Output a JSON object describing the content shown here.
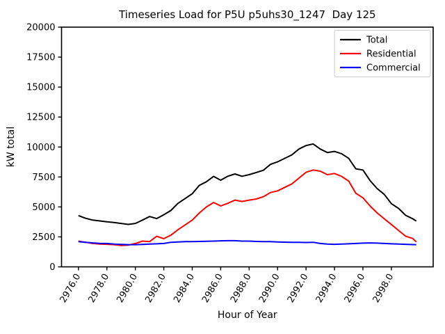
{
  "figure": {
    "title": "Timeseries Load for P5U p5uhs30_1247  Day 125",
    "xlabel": "Hour of Year",
    "ylabel": "kW total"
  },
  "chart_data": {
    "type": "line",
    "title": "Timeseries Load for P5U p5uhs30_1247  Day 125",
    "xlabel": "Hour of Year",
    "ylabel": "kW total",
    "xlim": [
      2974.81,
      3000.94
    ],
    "ylim": [
      0,
      20000
    ],
    "grid": false,
    "legend_position": "upper right",
    "xticks": [
      2976,
      2978,
      2980,
      2982,
      2984,
      2986,
      2988,
      2990,
      2992,
      2994,
      2996,
      2998
    ],
    "xtick_labels": [
      "2976.0",
      "2978.0",
      "2980.0",
      "2982.0",
      "2984.0",
      "2986.0",
      "2988.0",
      "2990.0",
      "2992.0",
      "2994.0",
      "2996.0",
      "2998.0"
    ],
    "yticks": [
      0,
      2500,
      5000,
      7500,
      10000,
      12500,
      15000,
      17500,
      20000
    ],
    "ytick_labels": [
      "0",
      "2500",
      "5000",
      "7500",
      "10000",
      "12500",
      "15000",
      "17500",
      "20000"
    ],
    "x": [
      2976.0,
      2976.5,
      2977.0,
      2977.5,
      2978.0,
      2978.5,
      2979.0,
      2979.5,
      2980.0,
      2980.5,
      2981.0,
      2981.5,
      2982.0,
      2982.5,
      2983.0,
      2983.5,
      2984.0,
      2984.5,
      2985.0,
      2985.5,
      2986.0,
      2986.5,
      2987.0,
      2987.5,
      2988.0,
      2988.5,
      2989.0,
      2989.5,
      2990.0,
      2990.5,
      2991.0,
      2991.5,
      2992.0,
      2992.5,
      2993.0,
      2993.5,
      2994.0,
      2994.5,
      2995.0,
      2995.5,
      2996.0,
      2996.5,
      2997.0,
      2997.5,
      2998.0,
      2998.5,
      2999.0,
      2999.5,
      2999.75
    ],
    "series": [
      {
        "name": "Total",
        "color": "#000000",
        "values": [
          4280,
          4050,
          3900,
          3830,
          3760,
          3700,
          3620,
          3540,
          3620,
          3900,
          4200,
          4030,
          4350,
          4700,
          5300,
          5700,
          6100,
          6800,
          7100,
          7550,
          7230,
          7560,
          7750,
          7560,
          7690,
          7870,
          8060,
          8550,
          8760,
          9050,
          9340,
          9830,
          10120,
          10250,
          9830,
          9540,
          9630,
          9440,
          9050,
          8180,
          8080,
          7200,
          6530,
          6050,
          5270,
          4880,
          4300,
          4010,
          3820
        ]
      },
      {
        "name": "Residential",
        "color": "#ff0000",
        "values": [
          2150,
          2050,
          1950,
          1900,
          1880,
          1850,
          1790,
          1810,
          1950,
          2150,
          2100,
          2550,
          2350,
          2650,
          3100,
          3500,
          3900,
          4500,
          5000,
          5370,
          5080,
          5300,
          5570,
          5460,
          5570,
          5660,
          5850,
          6200,
          6340,
          6630,
          6920,
          7400,
          7890,
          8080,
          7980,
          7690,
          7790,
          7550,
          7150,
          6140,
          5760,
          5080,
          4500,
          4010,
          3530,
          3040,
          2560,
          2370,
          2080
        ]
      },
      {
        "name": "Commercial",
        "color": "#0000ff",
        "values": [
          2100,
          2050,
          2000,
          1960,
          1950,
          1900,
          1870,
          1850,
          1850,
          1870,
          1900,
          1920,
          1950,
          2050,
          2080,
          2100,
          2100,
          2120,
          2130,
          2150,
          2170,
          2180,
          2180,
          2150,
          2150,
          2120,
          2100,
          2100,
          2080,
          2060,
          2050,
          2050,
          2030,
          2050,
          1950,
          1900,
          1880,
          1900,
          1920,
          1950,
          1980,
          2000,
          1980,
          1950,
          1920,
          1900,
          1880,
          1860,
          1850
        ]
      }
    ]
  }
}
